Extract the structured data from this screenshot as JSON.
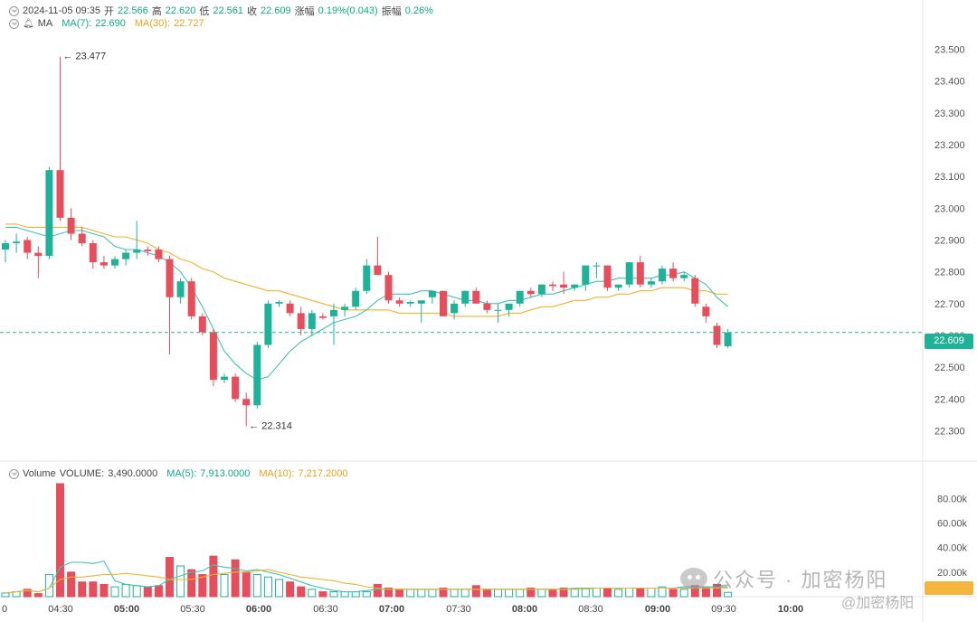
{
  "header": {
    "datetime": "2024-11-05 09:35",
    "open_label": "开",
    "open": "22.566",
    "high_label": "高",
    "high": "22.620",
    "low_label": "低",
    "low": "22.561",
    "close_label": "收",
    "close": "22.609",
    "change_label": "涨幅",
    "change": "0.19%(0.043)",
    "amplitude_label": "振幅",
    "amplitude": "0.26%"
  },
  "ma_legend": {
    "name": "MA",
    "ma7_label": "MA(7):",
    "ma7": "22.690",
    "ma30_label": "MA(30):",
    "ma30": "22.727"
  },
  "volume_legend": {
    "name": "Volume",
    "volume_label": "VOLUME:",
    "volume": "3,490.0000",
    "ma5_label": "MA(5):",
    "ma5": "7,913.0000",
    "ma10_label": "MA(10):",
    "ma10": "7,217.2000"
  },
  "watermark": {
    "line1": "公众号 · 加密杨阳",
    "line2": "@加密杨阳"
  },
  "colors": {
    "up": "#1eb398",
    "down": "#e84d5b",
    "ma7": "#3fc4b4",
    "ma30": "#f2b12e",
    "grid": "#eeeeee"
  },
  "chart_data": {
    "type": "candlestick",
    "price_axis": {
      "min": 22.25,
      "max": 23.55,
      "ticks": [
        "23.500",
        "23.400",
        "23.300",
        "23.200",
        "23.100",
        "23.000",
        "22.900",
        "22.800",
        "22.700",
        "22.600",
        "22.500",
        "22.400",
        "22.300"
      ]
    },
    "volume_axis": {
      "max": 92000,
      "ticks": [
        "80.00k",
        "60.00k",
        "40.00k",
        "20.00k"
      ]
    },
    "time_axis": [
      "0",
      "04:30",
      "05:00",
      "05:30",
      "06:00",
      "06:30",
      "07:00",
      "07:30",
      "08:00",
      "08:30",
      "09:00",
      "09:30",
      "10:00"
    ],
    "last_price": "22.609",
    "high_marker": "23.477",
    "low_marker": "22.314",
    "candles": [
      [
        22.87,
        22.9,
        22.83,
        22.89,
        3000
      ],
      [
        22.89,
        22.92,
        22.86,
        22.895,
        4000
      ],
      [
        22.9,
        22.91,
        22.84,
        22.86,
        6000
      ],
      [
        22.86,
        22.88,
        22.78,
        22.85,
        2500
      ],
      [
        22.85,
        23.13,
        22.84,
        23.12,
        18000
      ],
      [
        23.12,
        23.477,
        22.96,
        22.97,
        92000
      ],
      [
        22.97,
        23.0,
        22.9,
        22.92,
        20000
      ],
      [
        22.92,
        22.94,
        22.88,
        22.89,
        12000
      ],
      [
        22.89,
        22.9,
        22.81,
        22.83,
        12000
      ],
      [
        22.83,
        22.85,
        22.81,
        22.82,
        10000
      ],
      [
        22.82,
        22.85,
        22.81,
        22.84,
        8000
      ],
      [
        22.84,
        22.87,
        22.82,
        22.86,
        10000
      ],
      [
        22.86,
        22.96,
        22.84,
        22.87,
        9000
      ],
      [
        22.87,
        22.88,
        22.85,
        22.865,
        8000
      ],
      [
        22.87,
        22.88,
        22.83,
        22.84,
        9000
      ],
      [
        22.84,
        22.85,
        22.54,
        22.72,
        32000
      ],
      [
        22.72,
        22.78,
        22.7,
        22.77,
        25000
      ],
      [
        22.77,
        22.78,
        22.65,
        22.66,
        22000
      ],
      [
        22.66,
        22.67,
        22.6,
        22.61,
        18000
      ],
      [
        22.61,
        22.62,
        22.44,
        22.46,
        33000
      ],
      [
        22.46,
        22.48,
        22.45,
        22.47,
        18000
      ],
      [
        22.47,
        22.48,
        22.39,
        22.4,
        30000
      ],
      [
        22.4,
        22.42,
        22.314,
        22.38,
        20000
      ],
      [
        22.38,
        22.58,
        22.37,
        22.57,
        18000
      ],
      [
        22.57,
        22.71,
        22.56,
        22.7,
        16000
      ],
      [
        22.7,
        22.71,
        22.69,
        22.705,
        14000
      ],
      [
        22.7,
        22.71,
        22.66,
        22.67,
        12000
      ],
      [
        22.67,
        22.69,
        22.6,
        22.62,
        8000
      ],
      [
        22.62,
        22.68,
        22.6,
        22.67,
        6000
      ],
      [
        22.66,
        22.67,
        22.65,
        22.655,
        4000
      ],
      [
        22.66,
        22.7,
        22.57,
        22.68,
        4000
      ],
      [
        22.68,
        22.7,
        22.66,
        22.69,
        4000
      ],
      [
        22.69,
        22.75,
        22.68,
        22.74,
        4000
      ],
      [
        22.74,
        22.84,
        22.73,
        22.82,
        4000
      ],
      [
        22.82,
        22.91,
        22.79,
        22.79,
        10000
      ],
      [
        22.79,
        22.8,
        22.7,
        22.71,
        7000
      ],
      [
        22.71,
        22.72,
        22.69,
        22.7,
        6000
      ],
      [
        22.7,
        22.71,
        22.69,
        22.705,
        6000
      ],
      [
        22.7,
        22.71,
        22.64,
        22.71,
        6000
      ],
      [
        22.72,
        22.74,
        22.7,
        22.74,
        6000
      ],
      [
        22.74,
        22.74,
        22.66,
        22.66,
        7000
      ],
      [
        22.67,
        22.71,
        22.65,
        22.7,
        6000
      ],
      [
        22.7,
        22.74,
        22.69,
        22.74,
        6000
      ],
      [
        22.74,
        22.75,
        22.7,
        22.7,
        9000
      ],
      [
        22.7,
        22.71,
        22.67,
        22.68,
        6000
      ],
      [
        22.68,
        22.7,
        22.64,
        22.68,
        6000
      ],
      [
        22.68,
        22.7,
        22.66,
        22.7,
        6000
      ],
      [
        22.7,
        22.74,
        22.69,
        22.74,
        6000
      ],
      [
        22.74,
        22.75,
        22.72,
        22.73,
        7000
      ],
      [
        22.73,
        22.76,
        22.72,
        22.76,
        6000
      ],
      [
        22.76,
        22.77,
        22.74,
        22.755,
        6000
      ],
      [
        22.76,
        22.8,
        22.73,
        22.75,
        7000
      ],
      [
        22.75,
        22.76,
        22.74,
        22.76,
        6000
      ],
      [
        22.76,
        22.82,
        22.74,
        22.82,
        7000
      ],
      [
        22.82,
        22.83,
        22.78,
        22.82,
        7000
      ],
      [
        22.82,
        22.82,
        22.74,
        22.75,
        7000
      ],
      [
        22.75,
        22.76,
        22.74,
        22.76,
        6000
      ],
      [
        22.76,
        22.83,
        22.75,
        22.83,
        7000
      ],
      [
        22.83,
        22.85,
        22.75,
        22.76,
        7000
      ],
      [
        22.76,
        22.78,
        22.75,
        22.77,
        7000
      ],
      [
        22.77,
        22.82,
        22.76,
        22.81,
        8000
      ],
      [
        22.81,
        22.83,
        22.77,
        22.78,
        6000
      ],
      [
        22.78,
        22.8,
        22.77,
        22.79,
        6000
      ],
      [
        22.78,
        22.79,
        22.69,
        22.7,
        9000
      ],
      [
        22.69,
        22.7,
        22.64,
        22.66,
        8000
      ],
      [
        22.63,
        22.64,
        22.56,
        22.57,
        10000
      ],
      [
        22.566,
        22.62,
        22.561,
        22.609,
        3490
      ]
    ],
    "ma7": [
      22.94,
      22.94,
      22.93,
      22.92,
      22.91,
      22.92,
      22.93,
      22.93,
      22.92,
      22.91,
      22.88,
      22.87,
      22.87,
      22.86,
      22.85,
      22.83,
      22.8,
      22.75,
      22.69,
      22.62,
      22.55,
      22.51,
      22.48,
      22.46,
      22.47,
      22.51,
      22.55,
      22.58,
      22.6,
      22.62,
      22.64,
      22.65,
      22.66,
      22.68,
      22.71,
      22.73,
      22.73,
      22.73,
      22.74,
      22.74,
      22.73,
      22.72,
      22.71,
      22.71,
      22.7,
      22.7,
      22.71,
      22.71,
      22.72,
      22.73,
      22.73,
      22.74,
      22.75,
      22.76,
      22.77,
      22.77,
      22.78,
      22.78,
      22.78,
      22.78,
      22.79,
      22.79,
      22.8,
      22.78,
      22.76,
      22.72,
      22.69
    ],
    "ma30": [
      22.95,
      22.95,
      22.94,
      22.94,
      22.94,
      22.94,
      22.94,
      22.94,
      22.93,
      22.92,
      22.91,
      22.91,
      22.9,
      22.89,
      22.87,
      22.86,
      22.84,
      22.83,
      22.81,
      22.8,
      22.78,
      22.77,
      22.76,
      22.75,
      22.74,
      22.74,
      22.73,
      22.72,
      22.71,
      22.7,
      22.69,
      22.68,
      22.68,
      22.68,
      22.68,
      22.68,
      22.67,
      22.67,
      22.67,
      22.67,
      22.67,
      22.66,
      22.66,
      22.66,
      22.66,
      22.66,
      22.67,
      22.67,
      22.68,
      22.69,
      22.69,
      22.7,
      22.71,
      22.71,
      22.72,
      22.72,
      22.73,
      22.73,
      22.74,
      22.74,
      22.75,
      22.75,
      22.75,
      22.74,
      22.74,
      22.73,
      22.73
    ],
    "vol_ma5": [
      3000,
      4000,
      5000,
      4000,
      7000,
      24000,
      28000,
      28000,
      27000,
      29000,
      13000,
      10000,
      9000,
      8000,
      9000,
      14000,
      17000,
      20000,
      21000,
      26000,
      24000,
      23000,
      21000,
      22000,
      20000,
      18000,
      15000,
      12000,
      9000,
      7000,
      5000,
      4000,
      4000,
      5000,
      6000,
      6000,
      6000,
      6000,
      6000,
      6000,
      6000,
      6000,
      6000,
      6000,
      6000,
      6000,
      6000,
      6000,
      6000,
      6000,
      6000,
      6000,
      7000,
      7000,
      7000,
      7000,
      7000,
      7000,
      7000,
      7000,
      7000,
      7000,
      8000,
      8000,
      8000,
      8000,
      7913
    ],
    "vol_ma10": [
      3000,
      4000,
      5000,
      4000,
      7000,
      14000,
      16000,
      16000,
      17000,
      18000,
      18000,
      19000,
      18000,
      17000,
      16000,
      14000,
      14000,
      14000,
      16000,
      18000,
      19000,
      20000,
      20000,
      21000,
      22000,
      20000,
      18000,
      16000,
      15000,
      14000,
      13000,
      11000,
      10000,
      8000,
      7000,
      6000,
      6000,
      6000,
      6000,
      6000,
      6000,
      6000,
      6000,
      6000,
      6000,
      6000,
      6000,
      6000,
      6000,
      6000,
      6000,
      6000,
      6000,
      6000,
      7000,
      7000,
      7000,
      7000,
      7000,
      7000,
      7000,
      7000,
      7000,
      7000,
      7000,
      7000,
      7217
    ]
  }
}
